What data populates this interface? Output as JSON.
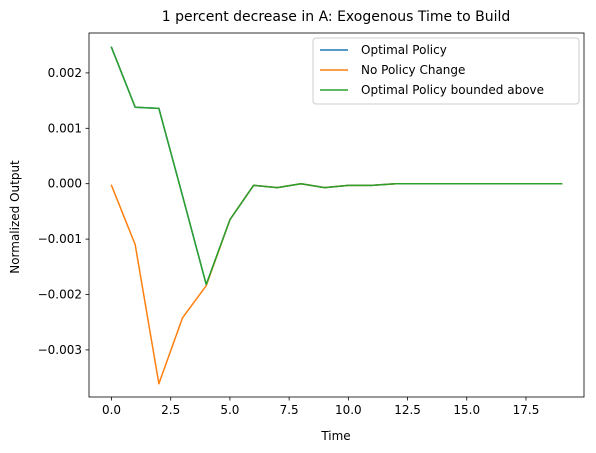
{
  "chart_data": {
    "type": "line",
    "title": "1 percent decrease in A: Exogenous Time to Build",
    "xlabel": "Time",
    "ylabel": "Normalized Output",
    "xlim": [
      -0.95,
      19.95
    ],
    "ylim": [
      -0.00385,
      0.00272
    ],
    "x_ticks": [
      0.0,
      2.5,
      5.0,
      7.5,
      10.0,
      12.5,
      15.0,
      17.5
    ],
    "x_tick_labels": [
      "0.0",
      "2.5",
      "5.0",
      "7.5",
      "10.0",
      "12.5",
      "15.0",
      "17.5"
    ],
    "y_ticks": [
      0.002,
      0.001,
      0.0,
      -0.001,
      -0.002,
      -0.003
    ],
    "y_tick_labels": [
      "0.002",
      "0.001",
      "0.000",
      "−0.001",
      "−0.002",
      "−0.003"
    ],
    "grid": false,
    "legend_position": "top-right",
    "x": [
      0,
      1,
      2,
      3,
      4,
      5,
      6,
      7,
      8,
      9,
      10,
      11,
      12,
      13,
      14,
      15,
      16,
      17,
      18,
      19
    ],
    "series": [
      {
        "name": "Optimal Policy",
        "color": "#1f77b4",
        "values": [
          0.00246,
          0.00138,
          0.00136,
          -0.00022,
          -0.00182,
          -0.00065,
          -3e-05,
          -7e-05,
          0.0,
          -7e-05,
          -3e-05,
          -3e-05,
          0.0,
          0.0,
          0.0,
          0.0,
          0.0,
          0.0,
          0.0,
          0.0
        ]
      },
      {
        "name": "No Policy Change",
        "color": "#ff7f0e",
        "values": [
          -3e-05,
          -0.0011,
          -0.00361,
          -0.00242,
          -0.00184,
          -0.00065,
          -3e-05,
          -7e-05,
          0.0,
          -7e-05,
          -3e-05,
          -3e-05,
          0.0,
          0.0,
          0.0,
          0.0,
          0.0,
          0.0,
          0.0,
          0.0
        ]
      },
      {
        "name": "Optimal Policy bounded above",
        "color": "#2ca02c",
        "values": [
          0.00246,
          0.00138,
          0.00136,
          -0.00022,
          -0.00182,
          -0.00065,
          -3e-05,
          -7e-05,
          0.0,
          -7e-05,
          -3e-05,
          -3e-05,
          0.0,
          0.0,
          0.0,
          0.0,
          0.0,
          0.0,
          0.0,
          0.0
        ]
      }
    ]
  }
}
